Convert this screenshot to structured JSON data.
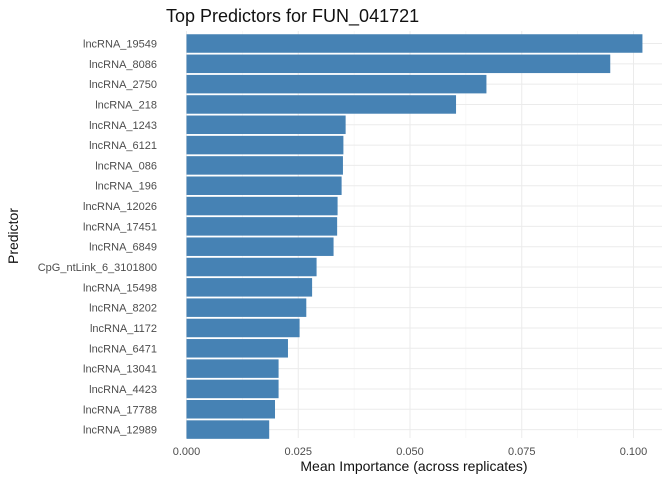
{
  "chart_data": {
    "type": "bar",
    "orientation": "horizontal",
    "title": "Top Predictors for FUN_041721",
    "xlabel": "Mean Importance (across replicates)",
    "ylabel": "Predictor",
    "xlim": [
      0,
      0.102
    ],
    "x_ticks": [
      "0.000",
      "0.025",
      "0.050",
      "0.075",
      "0.100"
    ],
    "x_tick_values": [
      0,
      0.025,
      0.05,
      0.075,
      0.1
    ],
    "bar_color": "#4682b4",
    "grid": true,
    "categories": [
      "lncRNA_19549",
      "lncRNA_8086",
      "lncRNA_2750",
      "lncRNA_218",
      "lncRNA_1243",
      "lncRNA_6121",
      "lncRNA_086",
      "lncRNA_196",
      "lncRNA_12026",
      "lncRNA_17451",
      "lncRNA_6849",
      "CpG_ntLink_6_3101800",
      "lncRNA_15498",
      "lncRNA_8202",
      "lncRNA_1172",
      "lncRNA_6471",
      "lncRNA_13041",
      "lncRNA_4423",
      "lncRNA_17788",
      "lncRNA_12989"
    ],
    "values": [
      0.102,
      0.0948,
      0.0671,
      0.0603,
      0.0356,
      0.0351,
      0.035,
      0.0347,
      0.0338,
      0.0337,
      0.0329,
      0.0291,
      0.0281,
      0.0268,
      0.0253,
      0.0227,
      0.0206,
      0.0206,
      0.0198,
      0.0185
    ]
  }
}
